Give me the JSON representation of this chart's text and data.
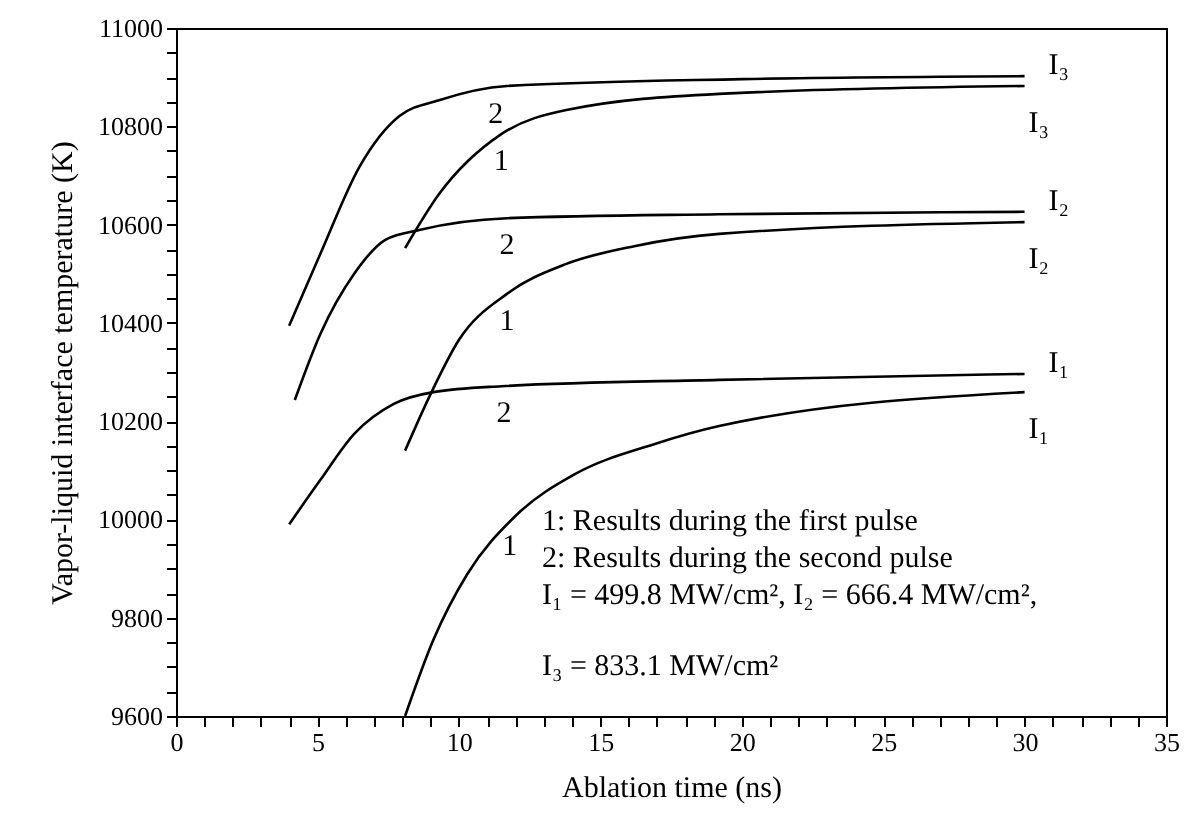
{
  "chart_data": {
    "type": "line",
    "xlabel": "Ablation time (ns)",
    "ylabel": "Vapor-liquid interface temperature (K)",
    "xlim": [
      0,
      35
    ],
    "ylim": [
      9600,
      11000
    ],
    "xticks": [
      0,
      {
        "value": 1,
        "label": null
      },
      {
        "value": 2,
        "label": null
      },
      {
        "value": 3,
        "label": null
      },
      {
        "value": 4,
        "label": null
      },
      5,
      {
        "value": 6,
        "label": null
      },
      {
        "value": 7,
        "label": null
      },
      {
        "value": 8,
        "label": null
      },
      {
        "value": 9,
        "label": null
      },
      10,
      {
        "value": 11,
        "label": null
      },
      {
        "value": 12,
        "label": null
      },
      {
        "value": 13,
        "label": null
      },
      {
        "value": 14,
        "label": null
      },
      15,
      {
        "value": 16,
        "label": null
      },
      {
        "value": 17,
        "label": null
      },
      {
        "value": 18,
        "label": null
      },
      {
        "value": 19,
        "label": null
      },
      20,
      {
        "value": 21,
        "label": null
      },
      {
        "value": 22,
        "label": null
      },
      {
        "value": 23,
        "label": null
      },
      {
        "value": 24,
        "label": null
      },
      25,
      {
        "value": 26,
        "label": null
      },
      {
        "value": 27,
        "label": null
      },
      {
        "value": 28,
        "label": null
      },
      {
        "value": 29,
        "label": null
      },
      30,
      {
        "value": 31,
        "label": null
      },
      {
        "value": 32,
        "label": null
      },
      {
        "value": 33,
        "label": null
      },
      {
        "value": 34,
        "label": null
      },
      35
    ],
    "yticks": [
      9600,
      {
        "value": 9650,
        "label": null
      },
      {
        "value": 9700,
        "label": null
      },
      {
        "value": 9750,
        "label": null
      },
      9800,
      {
        "value": 9850,
        "label": null
      },
      {
        "value": 9900,
        "label": null
      },
      {
        "value": 9950,
        "label": null
      },
      10000,
      {
        "value": 10050,
        "label": null
      },
      {
        "value": 10100,
        "label": null
      },
      {
        "value": 10150,
        "label": null
      },
      10200,
      {
        "value": 10250,
        "label": null
      },
      {
        "value": 10300,
        "label": null
      },
      {
        "value": 10350,
        "label": null
      },
      10400,
      {
        "value": 10450,
        "label": null
      },
      {
        "value": 10500,
        "label": null
      },
      {
        "value": 10550,
        "label": null
      },
      10600,
      {
        "value": 10650,
        "label": null
      },
      {
        "value": 10700,
        "label": null
      },
      {
        "value": 10750,
        "label": null
      },
      10800,
      {
        "value": 10850,
        "label": null
      },
      {
        "value": 10900,
        "label": null
      },
      {
        "value": 10950,
        "label": null
      },
      11000
    ],
    "grid": false,
    "marker": "none",
    "line_style": "solid",
    "series": [
      {
        "name": "I₃",
        "color": "#000000",
        "x": [
          4.0,
          5.1,
          6.5,
          7.9,
          9.3,
          11.7,
          20,
          30
        ],
        "values": [
          10394,
          10540,
          10719,
          10821,
          10853,
          10882,
          10896,
          10902
        ]
      },
      {
        "name": "I₃",
        "color": "#000000",
        "x": [
          8.1,
          9.3,
          11.5,
          13.8,
          19.2,
          30
        ],
        "values": [
          10552,
          10662,
          10784,
          10833,
          10866,
          10882
        ]
      },
      {
        "name": "I₂",
        "color": "#000000",
        "x": [
          4.2,
          5.1,
          6.3,
          7.4,
          8.6,
          11.7,
          19.2,
          30
        ],
        "values": [
          10243,
          10377,
          10500,
          10569,
          10589,
          10613,
          10621,
          10626
        ]
      },
      {
        "name": "I₂",
        "color": "#000000",
        "x": [
          8.1,
          9.0,
          10.0,
          11.7,
          13.8,
          16.2,
          19.2,
          30
        ],
        "values": [
          10140,
          10255,
          10365,
          10459,
          10520,
          10556,
          10581,
          10605
        ]
      },
      {
        "name": "I₁",
        "color": "#000000",
        "x": [
          4.0,
          5.1,
          6.3,
          7.7,
          9.1,
          11.5,
          19.2,
          30
        ],
        "values": [
          9990,
          10080,
          10174,
          10235,
          10259,
          10271,
          10284,
          10296
        ]
      },
      {
        "name": "I₁",
        "color": "#000000",
        "x": [
          8.1,
          9.1,
          10.3,
          12.0,
          14.1,
          16.9,
          19.2,
          30
        ],
        "values": [
          9600,
          9755,
          9889,
          10007,
          10092,
          10153,
          10190,
          10259
        ]
      }
    ],
    "annotations": [
      {
        "text": "2",
        "x": 11.3,
        "y": 10879
      },
      {
        "text": "1",
        "x": 11.5,
        "y": 10784
      },
      {
        "text": "2",
        "x": 11.7,
        "y": 10613
      },
      {
        "text": "1",
        "x": 11.7,
        "y": 10459
      },
      {
        "text": "2",
        "x": 11.6,
        "y": 10271
      },
      {
        "text": "1",
        "x": 11.8,
        "y": 10000
      },
      "1: Results during the first pulse",
      "2: Results during the second pulse",
      "I₁ = 499.8 MW/cm², I₂ = 666.4 MW/cm²,",
      "I₃ = 833.1 MW/cm²"
    ]
  }
}
